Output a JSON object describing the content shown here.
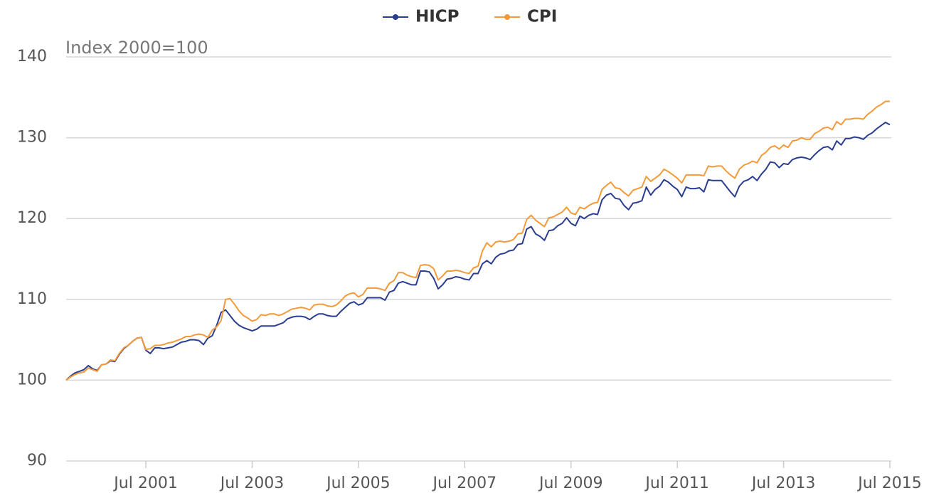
{
  "chart_data": {
    "type": "line",
    "y_axis_label": "Index 2000=100",
    "categories": [
      null,
      null,
      null,
      null,
      null,
      null,
      null,
      null,
      null,
      null,
      null,
      null,
      null,
      null,
      null,
      null,
      null,
      null,
      "Jul 2001",
      null,
      null,
      null,
      null,
      null,
      null,
      null,
      null,
      null,
      null,
      null,
      null,
      null,
      null,
      null,
      null,
      null,
      null,
      null,
      null,
      null,
      null,
      null,
      "Jul 2003",
      null,
      null,
      null,
      null,
      null,
      null,
      null,
      null,
      null,
      null,
      null,
      null,
      null,
      null,
      null,
      null,
      null,
      null,
      null,
      null,
      null,
      null,
      null,
      "Jul 2005",
      null,
      null,
      null,
      null,
      null,
      null,
      null,
      null,
      null,
      null,
      null,
      null,
      null,
      null,
      null,
      null,
      null,
      null,
      null,
      null,
      null,
      null,
      null,
      "Jul 2007",
      null,
      null,
      null,
      null,
      null,
      null,
      null,
      null,
      null,
      null,
      null,
      null,
      null,
      null,
      null,
      null,
      null,
      null,
      null,
      null,
      null,
      null,
      null,
      "Jul 2009",
      null,
      null,
      null,
      null,
      null,
      null,
      null,
      null,
      null,
      null,
      null,
      null,
      null,
      null,
      null,
      null,
      null,
      null,
      null,
      null,
      null,
      null,
      null,
      "Jul 2011",
      null,
      null,
      null,
      null,
      null,
      null,
      null,
      null,
      null,
      null,
      null,
      null,
      null,
      null,
      null,
      null,
      null,
      null,
      null,
      null,
      null,
      null,
      null,
      "Jul 2013",
      null,
      null,
      null,
      null,
      null,
      null,
      null,
      null,
      null,
      null,
      null,
      null,
      null,
      null,
      null,
      null,
      null,
      null,
      null,
      null,
      null,
      null,
      null,
      "Jul 2015"
    ],
    "series": [
      {
        "name": "HICP",
        "color": "#2b3d8f",
        "values": [
          100,
          100.5,
          100.9,
          101.1,
          101.3,
          101.8,
          101.4,
          101.2,
          101.9,
          102.0,
          102.4,
          102.3,
          103.2,
          103.9,
          104.3,
          104.8,
          105.2,
          105.3,
          103.7,
          103.3,
          104.0,
          104.0,
          103.9,
          104.0,
          104.1,
          104.4,
          104.7,
          104.8,
          105.0,
          105.0,
          104.9,
          104.4,
          105.2,
          105.5,
          106.8,
          108.4,
          108.7,
          108.0,
          107.3,
          106.8,
          106.5,
          106.3,
          106.1,
          106.3,
          106.7,
          106.7,
          106.7,
          106.7,
          106.9,
          107.1,
          107.6,
          107.8,
          107.9,
          107.9,
          107.8,
          107.5,
          107.9,
          108.2,
          108.2,
          108.0,
          107.9,
          107.9,
          108.5,
          109.0,
          109.5,
          109.7,
          109.3,
          109.5,
          110.2,
          110.2,
          110.2,
          110.2,
          109.9,
          110.9,
          111.1,
          112.0,
          112.2,
          112.0,
          111.8,
          111.8,
          113.5,
          113.5,
          113.4,
          112.6,
          111.3,
          111.8,
          112.5,
          112.6,
          112.8,
          112.7,
          112.5,
          112.4,
          113.2,
          113.2,
          114.4,
          114.8,
          114.4,
          115.2,
          115.6,
          115.7,
          116.0,
          116.1,
          116.8,
          116.9,
          118.7,
          119.0,
          118.1,
          117.8,
          117.3,
          118.5,
          118.6,
          119.1,
          119.4,
          120.1,
          119.4,
          119.1,
          120.3,
          120.0,
          120.4,
          120.6,
          120.5,
          122.3,
          122.9,
          123.1,
          122.5,
          122.4,
          121.6,
          121.1,
          121.9,
          122.0,
          122.2,
          123.9,
          122.9,
          123.6,
          124.0,
          124.8,
          124.5,
          124.0,
          123.6,
          122.7,
          123.9,
          123.7,
          123.7,
          123.8,
          123.3,
          124.8,
          124.7,
          124.7,
          124.7,
          124.0,
          123.3,
          122.7,
          124.0,
          124.6,
          124.8,
          125.2,
          124.7,
          125.5,
          126.1,
          127.0,
          126.9,
          126.3,
          126.8,
          126.7,
          127.3,
          127.5,
          127.6,
          127.5,
          127.3,
          127.9,
          128.4,
          128.8,
          128.9,
          128.5,
          129.6,
          129.1,
          129.9,
          129.9,
          130.1,
          130.0,
          129.8,
          130.3,
          130.6,
          131.1,
          131.5,
          131.9,
          131.6
        ]
      },
      {
        "name": "CPI",
        "color": "#f39a3b",
        "values": [
          100,
          100.4,
          100.7,
          100.9,
          101.0,
          101.5,
          101.3,
          101.1,
          101.9,
          102.0,
          102.5,
          102.4,
          103.3,
          104.0,
          104.3,
          104.8,
          105.2,
          105.3,
          103.8,
          103.9,
          104.3,
          104.3,
          104.4,
          104.6,
          104.7,
          104.9,
          105.1,
          105.4,
          105.4,
          105.6,
          105.7,
          105.6,
          105.3,
          106.2,
          106.6,
          107.4,
          110.0,
          110.1,
          109.4,
          108.6,
          108.0,
          107.7,
          107.3,
          107.5,
          108.1,
          108.0,
          108.2,
          108.2,
          108.0,
          108.2,
          108.5,
          108.8,
          108.9,
          109.0,
          108.9,
          108.7,
          109.3,
          109.4,
          109.4,
          109.2,
          109.1,
          109.3,
          109.8,
          110.4,
          110.7,
          110.8,
          110.3,
          110.6,
          111.4,
          111.4,
          111.4,
          111.3,
          111.1,
          112.0,
          112.3,
          113.3,
          113.3,
          113.0,
          112.8,
          112.7,
          114.2,
          114.3,
          114.2,
          113.8,
          112.4,
          112.9,
          113.5,
          113.5,
          113.6,
          113.5,
          113.3,
          113.2,
          113.9,
          114.1,
          116.0,
          117.0,
          116.5,
          117.1,
          117.2,
          117.1,
          117.2,
          117.4,
          118.1,
          118.2,
          119.9,
          120.4,
          119.8,
          119.4,
          119.0,
          120.1,
          120.2,
          120.5,
          120.8,
          121.4,
          120.7,
          120.5,
          121.4,
          121.2,
          121.6,
          121.9,
          122.0,
          123.6,
          124.1,
          124.5,
          123.8,
          123.7,
          123.2,
          122.8,
          123.5,
          123.7,
          123.9,
          125.2,
          124.6,
          125.0,
          125.4,
          126.1,
          125.8,
          125.4,
          125.0,
          124.4,
          125.4,
          125.4,
          125.4,
          125.4,
          125.3,
          126.5,
          126.4,
          126.5,
          126.5,
          125.9,
          125.4,
          125.0,
          126.1,
          126.6,
          126.8,
          127.1,
          126.9,
          127.8,
          128.2,
          128.8,
          129.0,
          128.6,
          129.1,
          128.8,
          129.6,
          129.7,
          130.0,
          129.8,
          129.8,
          130.5,
          130.8,
          131.2,
          131.3,
          131.0,
          132.0,
          131.6,
          132.3,
          132.3,
          132.4,
          132.4,
          132.3,
          132.9,
          133.3,
          133.8,
          134.1,
          134.5,
          134.5
        ]
      }
    ],
    "ylim": [
      90,
      140
    ],
    "yticks": [
      90,
      100,
      110,
      120,
      130,
      140
    ],
    "grid": true,
    "legend": "top"
  }
}
